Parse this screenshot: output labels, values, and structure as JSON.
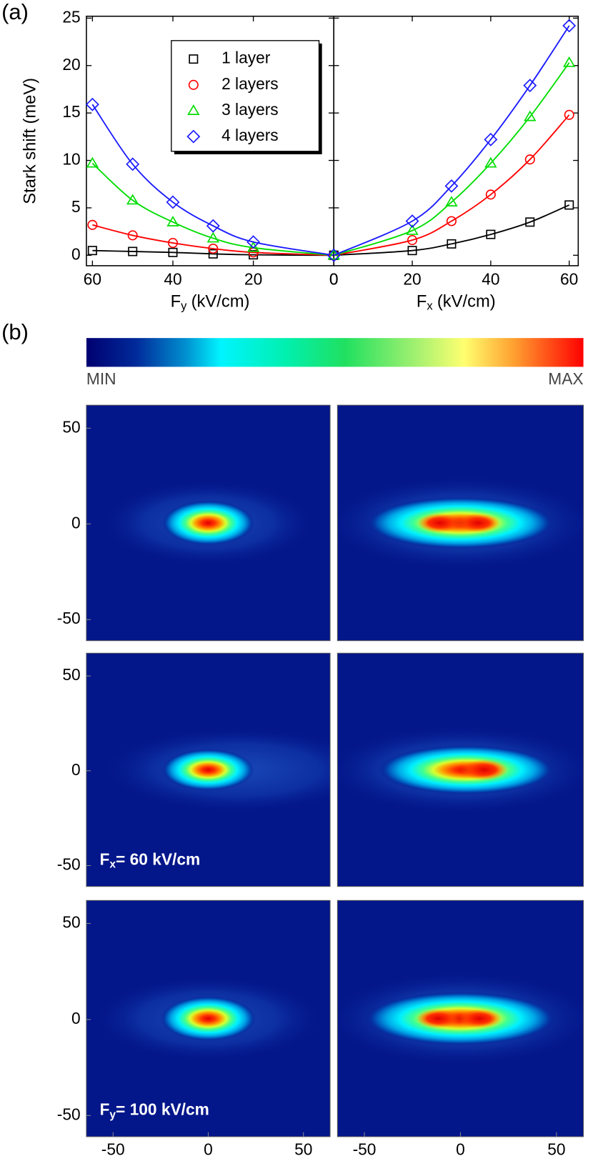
{
  "panel_labels": [
    "(a)",
    "(b)"
  ],
  "chart_data": [
    {
      "type": "line",
      "y_label": "Stark shift (meV)",
      "x_label": [
        "F",
        "y",
        "(kV/cm)"
      ],
      "x": [
        60,
        50,
        40,
        30,
        20,
        0
      ],
      "xlim": [
        61.5,
        0
      ],
      "xticks": [
        60,
        40,
        20,
        0
      ],
      "ylim": [
        -1.1,
        25.2
      ],
      "yticks": [
        0,
        5,
        10,
        15,
        20,
        25
      ],
      "legend": "upper right",
      "series": [
        {
          "name": "1 layer",
          "color": "#000000",
          "marker": "square",
          "values": [
            0.5,
            0.4,
            0.3,
            0.15,
            0.05,
            0
          ]
        },
        {
          "name": "2 layers",
          "color": "#ff0000",
          "marker": "circle",
          "values": [
            3.2,
            2.1,
            1.3,
            0.7,
            0.3,
            0
          ]
        },
        {
          "name": "3 layers",
          "color": "#00dd00",
          "marker": "triangle",
          "values": [
            9.7,
            5.8,
            3.5,
            1.8,
            0.8,
            0
          ]
        },
        {
          "name": "4 layers",
          "color": "#1a1aff",
          "marker": "diamond",
          "values": [
            15.9,
            9.6,
            5.6,
            3.1,
            1.4,
            0
          ]
        }
      ]
    },
    {
      "type": "line",
      "x_label": [
        "F",
        "x",
        "(kV/cm)"
      ],
      "x": [
        0,
        20,
        30,
        40,
        50,
        60
      ],
      "xlim": [
        0,
        62.3
      ],
      "xticks": [
        0,
        20,
        40,
        60
      ],
      "ylim": [
        -1.1,
        25.2
      ],
      "yticks": [
        0,
        5,
        10,
        15,
        20,
        25
      ],
      "ytick_labels": false,
      "series": [
        {
          "color": "#000000",
          "marker": "square",
          "values": [
            0,
            0.5,
            1.2,
            2.2,
            3.5,
            5.3
          ]
        },
        {
          "color": "#ff0000",
          "marker": "circle",
          "values": [
            0,
            1.6,
            3.6,
            6.4,
            10.1,
            14.8
          ]
        },
        {
          "color": "#00dd00",
          "marker": "triangle",
          "values": [
            0,
            2.6,
            5.6,
            9.7,
            14.6,
            20.3
          ]
        },
        {
          "color": "#1a1aff",
          "marker": "diamond",
          "values": [
            0,
            3.6,
            7.3,
            12.2,
            17.9,
            24.2
          ]
        }
      ]
    },
    {
      "type": "colorbar",
      "labels": [
        "MIN",
        "MAX"
      ]
    },
    {
      "type": "heatmap",
      "xlim": [
        -64,
        64
      ],
      "ylim": [
        -61,
        62
      ],
      "yticks": [
        -50,
        0,
        50
      ]
    },
    {
      "type": "heatmap",
      "xlim": [
        -64,
        64
      ],
      "ylim": [
        -61,
        62
      ]
    },
    {
      "type": "heatmap",
      "xlim": [
        -64,
        64
      ],
      "ylim": [
        -61,
        62
      ],
      "yticks": [
        -50,
        0,
        50
      ],
      "annotation": [
        "F",
        "x",
        "= 60 kV/cm"
      ]
    },
    {
      "type": "heatmap",
      "xlim": [
        -64,
        64
      ],
      "ylim": [
        -61,
        62
      ]
    },
    {
      "type": "heatmap",
      "xlim": [
        -64,
        64
      ],
      "ylim": [
        -61,
        62
      ],
      "yticks": [
        -50,
        0,
        50
      ],
      "xticks": [
        -50,
        0,
        50
      ],
      "annotation": [
        "F",
        "y",
        "= 100 kV/cm"
      ]
    },
    {
      "type": "heatmap",
      "xlim": [
        -64,
        64
      ],
      "ylim": [
        -61,
        62
      ],
      "xticks": [
        -50,
        0,
        50
      ]
    }
  ]
}
